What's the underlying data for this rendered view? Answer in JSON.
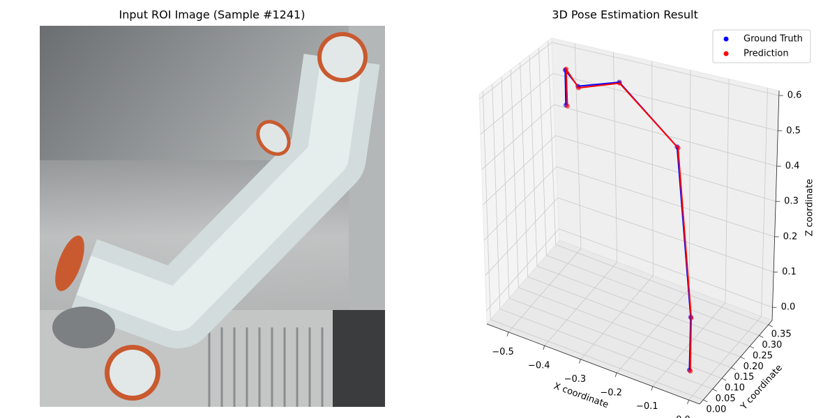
{
  "image_panel": {
    "title": "Input ROI Image (Sample #1241)"
  },
  "chart_data": {
    "type": "line3d",
    "title": "3D Pose Estimation Result",
    "xlabel": "X coordinate",
    "ylabel": "Y coordinate",
    "zlabel": "Z coordinate",
    "xlim": [
      -0.56,
      0.03
    ],
    "ylim": [
      -0.02,
      0.37
    ],
    "zlim": [
      -0.037,
      0.614
    ],
    "xticks": [
      {
        "value": -0.5,
        "label": "−0.5"
      },
      {
        "value": -0.4,
        "label": "−0.4"
      },
      {
        "value": -0.3,
        "label": "−0.3"
      },
      {
        "value": -0.2,
        "label": "−0.2"
      },
      {
        "value": -0.1,
        "label": "−0.1"
      },
      {
        "value": 0,
        "label": "0.0"
      }
    ],
    "yticks": [
      {
        "value": 0,
        "label": "0.00"
      },
      0.05,
      {
        "value": 0.1,
        "label": "0.10"
      },
      0.15,
      {
        "value": 0.2,
        "label": "0.20"
      },
      0.25,
      {
        "value": 0.3,
        "label": "0.30"
      },
      0.35
    ],
    "zticks": [
      {
        "value": 0,
        "label": "0.0"
      },
      0.1,
      0.2,
      0.3,
      0.4,
      0.5,
      0.6
    ],
    "grid": true,
    "legend": "upper right",
    "series": [
      {
        "name": "Ground Truth",
        "color": "#0000ff",
        "x": [
          -0.03,
          -0.03,
          -0.151,
          -0.342,
          -0.446,
          -0.47,
          -0.469
        ],
        "y": [
          0.04,
          0.04,
          0.199,
          0.281,
          0.272,
          0.255,
          0.252
        ],
        "z": [
          0,
          0.15,
          0.5,
          0.585,
          0.545,
          0.595,
          0.49
        ]
      },
      {
        "name": "Prediction",
        "color": "#ff0000",
        "x": [
          -0.028,
          -0.029,
          -0.149,
          -0.341,
          -0.444,
          -0.468,
          -0.466
        ],
        "y": [
          0.041,
          0.041,
          0.2,
          0.28,
          0.271,
          0.256,
          0.254
        ],
        "z": [
          -0.003,
          0.148,
          0.497,
          0.583,
          0.541,
          0.598,
          0.487
        ]
      }
    ]
  }
}
